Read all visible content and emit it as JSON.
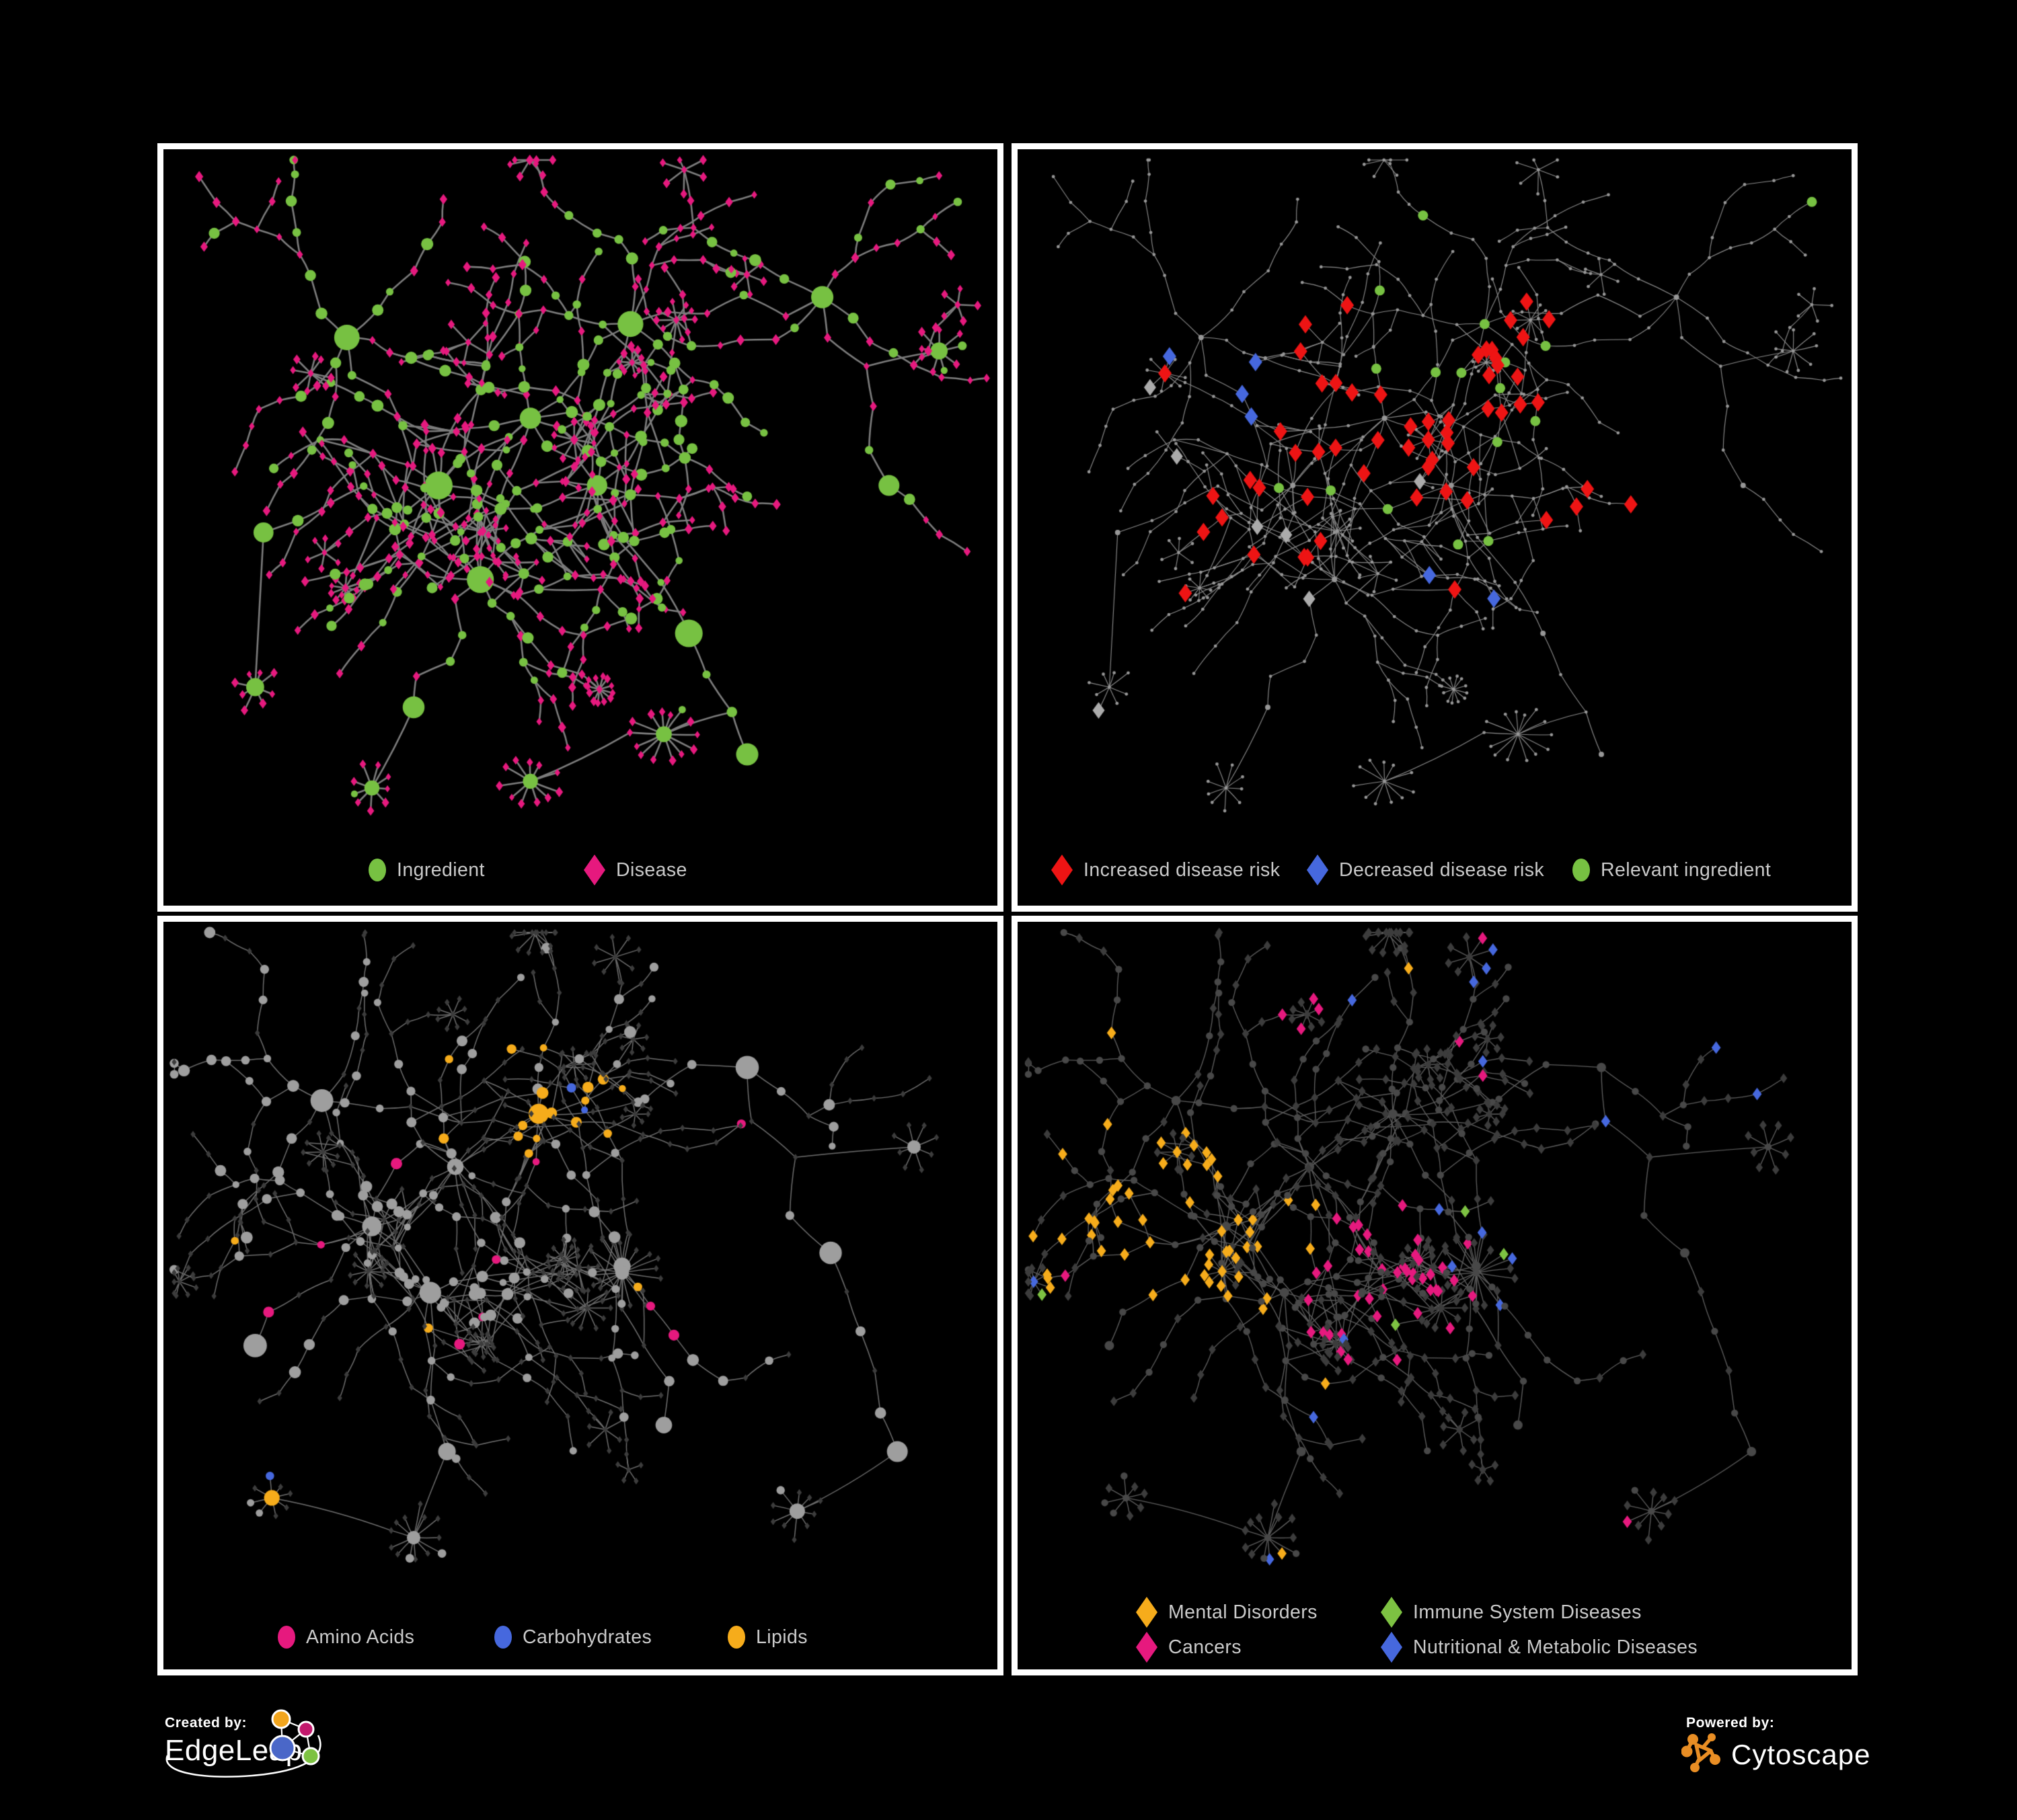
{
  "page": {
    "background": "#000000",
    "panel_border": "#ffffff",
    "legend_text_color": "#cacaca"
  },
  "panels": [
    {
      "name": "ingredient-disease-network",
      "legend": [
        {
          "label": "Ingredient",
          "shape": "circle",
          "color": "#77c142"
        },
        {
          "label": "Disease",
          "shape": "diamond",
          "color": "#e6197e"
        }
      ]
    },
    {
      "name": "disease-risk-network",
      "legend": [
        {
          "label": "Increased disease risk",
          "shape": "diamond",
          "color": "#ee1414"
        },
        {
          "label": "Decreased disease risk",
          "shape": "diamond",
          "color": "#4668de"
        },
        {
          "label": "Relevant ingredient",
          "shape": "circle",
          "color": "#77c142"
        }
      ]
    },
    {
      "name": "ingredient-class-network",
      "legend": [
        {
          "label": "Amino Acids",
          "shape": "circle",
          "color": "#e6197e"
        },
        {
          "label": "Carbohydrates",
          "shape": "circle",
          "color": "#4668de"
        },
        {
          "label": "Lipids",
          "shape": "circle",
          "color": "#f6ac1b"
        }
      ]
    },
    {
      "name": "disease-class-network",
      "legend": [
        {
          "label": "Mental Disorders",
          "shape": "diamond",
          "color": "#f6ac1b"
        },
        {
          "label": "Immune System Diseases",
          "shape": "diamond",
          "color": "#7dc242"
        },
        {
          "label": "Cancers",
          "shape": "diamond",
          "color": "#e6197e"
        },
        {
          "label": "Nutritional & Metabolic Diseases",
          "shape": "diamond",
          "color": "#4668de"
        }
      ]
    }
  ],
  "network": {
    "node_tiny": "#979797",
    "node_gray": "#9e9e9e",
    "node_dark_diamond": "#3c3c3c",
    "node_dark_circle": "#484848",
    "node_neutral_diamond": "#ababab",
    "edge_gray_bold": "#7d7d7d",
    "edge_gray_thin": "#8b8b8b",
    "edge_gray_mid": "#6f6f6f",
    "edge_gray_dim": "#5f5f5f"
  },
  "branding": {
    "created_by": "Created by:",
    "creator": "EdgeLeap",
    "powered_by": "Powered by:",
    "engine": "Cytoscape",
    "cytoscape_color": "#e98e24",
    "edgeleap_palette": [
      "#f2a51d",
      "#c2186c",
      "#4a67c8",
      "#7dc242"
    ]
  }
}
